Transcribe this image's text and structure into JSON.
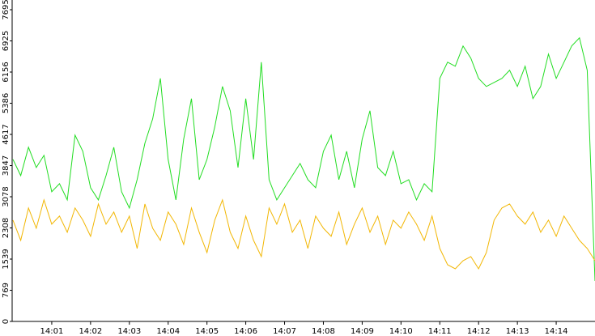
{
  "chart_data": {
    "type": "line",
    "x": [
      0,
      0.2,
      0.4,
      0.6,
      0.8,
      1,
      1.2,
      1.4,
      1.6,
      1.8,
      2,
      2.2,
      2.4,
      2.6,
      2.8,
      3,
      3.2,
      3.4,
      3.6,
      3.8,
      4,
      4.2,
      4.4,
      4.6,
      4.8,
      5,
      5.2,
      5.4,
      5.6,
      5.8,
      6,
      6.2,
      6.4,
      6.6,
      6.8,
      7,
      7.2,
      7.4,
      7.6,
      7.8,
      8,
      8.2,
      8.4,
      8.6,
      8.8,
      9,
      9.2,
      9.4,
      9.6,
      9.8,
      10,
      10.2,
      10.4,
      10.6,
      10.8,
      11,
      11.2,
      11.4,
      11.6,
      11.8,
      12,
      12.2,
      12.4,
      12.6,
      12.8,
      13,
      13.2,
      13.4,
      13.6,
      13.8,
      14,
      14.2,
      14.4,
      14.6,
      14.8,
      15
    ],
    "series": [
      {
        "color": "#22dd22",
        "values": [
          4000,
          3600,
          4300,
          3800,
          4100,
          3200,
          3400,
          3000,
          4600,
          4200,
          3300,
          3000,
          3600,
          4300,
          3200,
          2800,
          3500,
          4400,
          5000,
          6000,
          4000,
          3000,
          4500,
          5500,
          3500,
          4000,
          4800,
          5800,
          5200,
          3800,
          5500,
          4000,
          6400,
          3500,
          3000,
          3300,
          3600,
          3900,
          3500,
          3300,
          4200,
          4600,
          3500,
          4200,
          3300,
          4500,
          5200,
          3800,
          3600,
          4200,
          3400,
          3500,
          3000,
          3400,
          3200,
          6000,
          6400,
          6300,
          6800,
          6500,
          6000,
          5800,
          5900,
          6000,
          6200,
          5800,
          6300,
          5500,
          5800,
          6600,
          6000,
          6400,
          6800,
          7000,
          6200,
          1000
        ]
      },
      {
        "color": "#f2b705",
        "values": [
          2500,
          2000,
          2800,
          2300,
          3000,
          2400,
          2600,
          2200,
          2800,
          2500,
          2100,
          2900,
          2400,
          2700,
          2200,
          2600,
          1800,
          2900,
          2300,
          2000,
          2700,
          2400,
          1900,
          2800,
          2200,
          1700,
          2500,
          3000,
          2200,
          1800,
          2600,
          2000,
          1600,
          2800,
          2400,
          2900,
          2200,
          2500,
          1800,
          2600,
          2300,
          2100,
          2700,
          1900,
          2400,
          2800,
          2200,
          2600,
          1900,
          2500,
          2300,
          2700,
          2400,
          2000,
          2600,
          1800,
          1400,
          1300,
          1500,
          1600,
          1300,
          1700,
          2500,
          2800,
          2900,
          2600,
          2400,
          2700,
          2200,
          2500,
          2100,
          2600,
          2300,
          2000,
          1800,
          1500
        ]
      }
    ],
    "xlim": [
      0,
      15
    ],
    "xticks": [
      {
        "value": 1,
        "label": "14:01"
      },
      {
        "value": 2,
        "label": "14:02"
      },
      {
        "value": 3,
        "label": "14:03"
      },
      {
        "value": 4,
        "label": "14:04"
      },
      {
        "value": 5,
        "label": "14:05"
      },
      {
        "value": 6,
        "label": "14:06"
      },
      {
        "value": 7,
        "label": "14:07"
      },
      {
        "value": 8,
        "label": "14:08"
      },
      {
        "value": 9,
        "label": "14:09"
      },
      {
        "value": 10,
        "label": "14:10"
      },
      {
        "value": 11,
        "label": "14:11"
      },
      {
        "value": 12,
        "label": "14:12"
      },
      {
        "value": 13,
        "label": "14:13"
      },
      {
        "value": 14,
        "label": "14:14"
      }
    ],
    "ylim": [
      0,
      7935
    ],
    "yticks": [
      0,
      769,
      1539,
      2308,
      3078,
      3847,
      4617,
      5386,
      6156,
      6925,
      7695
    ]
  }
}
